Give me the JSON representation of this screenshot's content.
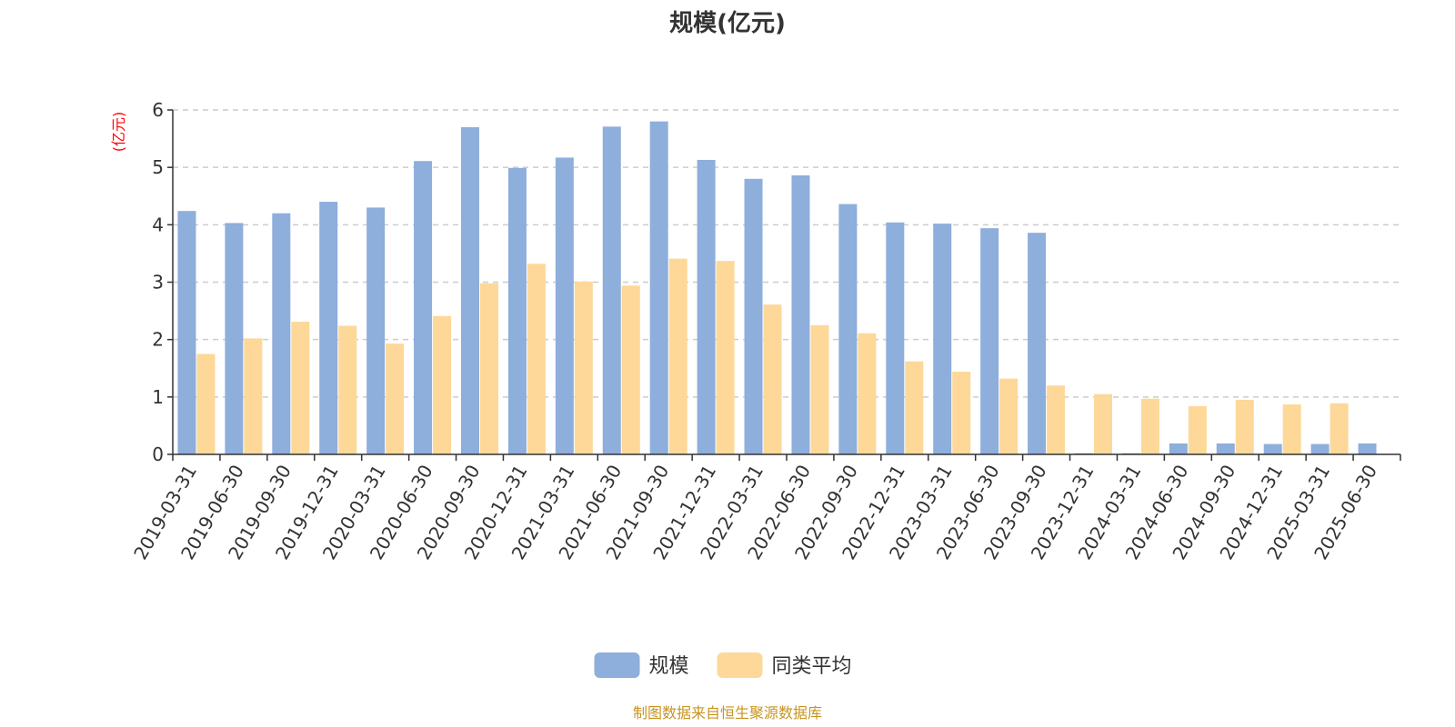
{
  "chart_data": {
    "type": "bar",
    "title": "规模(亿元)",
    "unit_label": "(亿元)",
    "xlabel": "",
    "ylabel": "",
    "ylim": [
      0,
      6
    ],
    "y_ticks": [
      0,
      1,
      2,
      3,
      4,
      5,
      6
    ],
    "grid": true,
    "legend_position": "bottom-center",
    "categories": [
      "2019-03-31",
      "2019-06-30",
      "2019-09-30",
      "2019-12-31",
      "2020-03-31",
      "2020-06-30",
      "2020-09-30",
      "2020-12-31",
      "2021-03-31",
      "2021-06-30",
      "2021-09-30",
      "2021-12-31",
      "2022-03-31",
      "2022-06-30",
      "2022-09-30",
      "2022-12-31",
      "2023-03-31",
      "2023-06-30",
      "2023-09-30",
      "2023-12-31",
      "2024-03-31",
      "2024-06-30",
      "2024-09-30",
      "2024-12-31",
      "2025-03-31",
      "2025-06-30"
    ],
    "series": [
      {
        "name": "规模",
        "color": "#8eaedc",
        "values": [
          4.24,
          4.03,
          4.2,
          4.4,
          4.3,
          5.11,
          5.7,
          4.99,
          5.17,
          5.71,
          5.8,
          5.13,
          4.8,
          4.86,
          4.36,
          4.04,
          4.02,
          3.94,
          3.86,
          0.02,
          0.02,
          0.19,
          0.19,
          0.18,
          0.18,
          0.19
        ]
      },
      {
        "name": "同类平均",
        "color": "#fdd899",
        "values": [
          1.75,
          2.02,
          2.31,
          2.24,
          1.93,
          2.41,
          2.98,
          3.32,
          3.01,
          2.94,
          3.41,
          3.37,
          2.61,
          2.25,
          2.11,
          1.62,
          1.44,
          1.32,
          1.2,
          1.05,
          0.97,
          0.84,
          0.95,
          0.87,
          0.89,
          null
        ]
      }
    ]
  },
  "source_note": "制图数据来自恒生聚源数据库"
}
